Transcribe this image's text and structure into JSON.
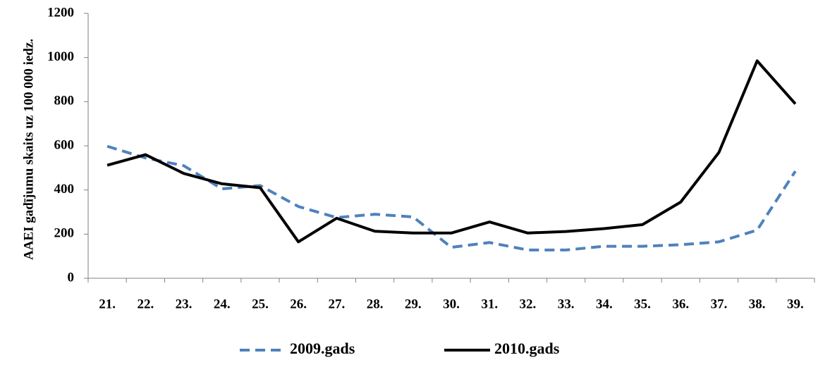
{
  "chart_data": {
    "type": "line",
    "y_label": "AAEI gadījumu skaits uz 100 000 iedz.",
    "categories": [
      "21.",
      "22.",
      "23.",
      "24.",
      "25.",
      "26.",
      "27.",
      "28.",
      "29.",
      "30.",
      "31.",
      "32.",
      "33.",
      "34.",
      "35.",
      "36.",
      "37.",
      "38.",
      "39."
    ],
    "series": [
      {
        "name": "2009.gads",
        "color": "#4f81bd",
        "dashed": true,
        "values": [
          598,
          545,
          510,
          405,
          420,
          325,
          275,
          290,
          278,
          140,
          162,
          128,
          128,
          145,
          145,
          152,
          165,
          218,
          485
        ]
      },
      {
        "name": "2010.gads",
        "color": "#000000",
        "dashed": false,
        "values": [
          512,
          560,
          475,
          428,
          410,
          165,
          272,
          213,
          205,
          205,
          255,
          205,
          212,
          225,
          243,
          345,
          570,
          985,
          790
        ]
      }
    ],
    "ylim": [
      0,
      1200
    ],
    "yticks": [
      0,
      200,
      400,
      600,
      800,
      1000,
      1200
    ],
    "grid": false,
    "legend": "bottom"
  }
}
